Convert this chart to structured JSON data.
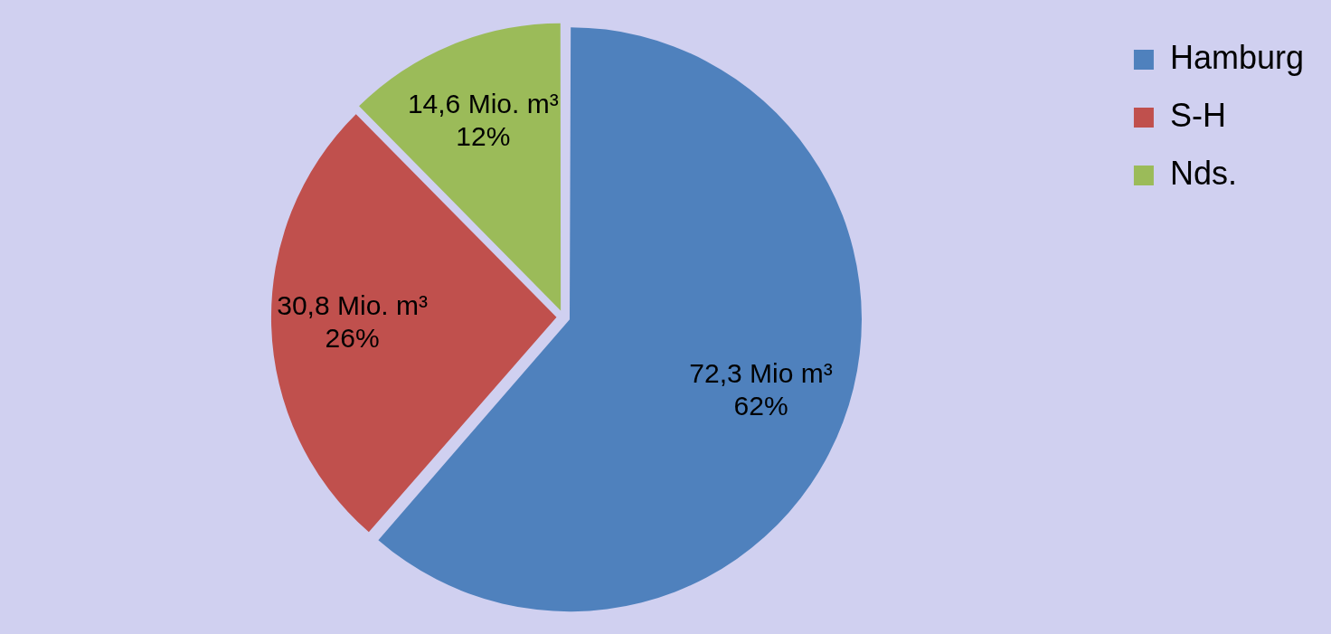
{
  "chart_data": {
    "type": "pie",
    "categories": [
      "Hamburg",
      "S-H",
      "Nds."
    ],
    "values": [
      72.3,
      30.8,
      14.6
    ],
    "colors": [
      "#4f81bd",
      "#c0504d",
      "#9bbb59"
    ],
    "value_labels": [
      "72,3 Mio m³\n62%",
      "30,8 Mio. m³\n26%",
      "14,6 Mio. m³\n12%"
    ],
    "legend": "top right"
  }
}
